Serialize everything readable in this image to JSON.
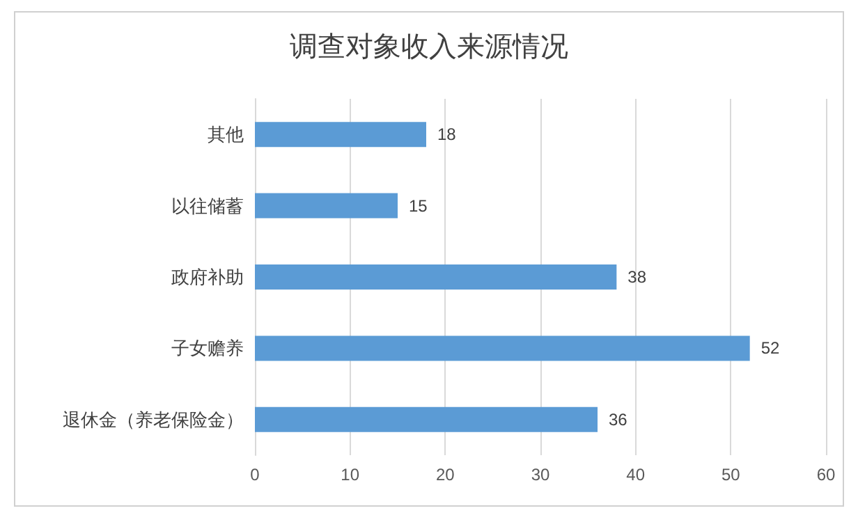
{
  "chart_data": {
    "type": "bar",
    "orientation": "horizontal",
    "title": "调查对象收入来源情况",
    "categories": [
      "其他",
      "以往储蓄",
      "政府补助",
      "子女赡养",
      "退休金（养老保险金）"
    ],
    "values": [
      18,
      15,
      38,
      52,
      36
    ],
    "color": "#5b9bd5",
    "xlim": [
      0,
      60
    ],
    "xticks": [
      0,
      10,
      20,
      30,
      40,
      50,
      60
    ],
    "grid": "x",
    "data_labels": true
  }
}
